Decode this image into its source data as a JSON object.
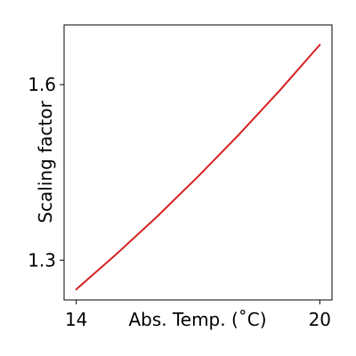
{
  "chart_data": {
    "type": "line",
    "xlabel": "Abs. Temp. (˚C)",
    "ylabel": "Scaling factor",
    "xlim": [
      13.7,
      20.3
    ],
    "ylim": [
      1.232,
      1.702
    ],
    "xticks": [
      14,
      20
    ],
    "xtick_labels": [
      "14",
      "20"
    ],
    "yticks": [
      1.3,
      1.6
    ],
    "ytick_labels": [
      "1.3",
      "1.6"
    ],
    "grid": false,
    "legend": "none",
    "series": [
      {
        "color": "#d62020",
        "x": [
          14,
          15,
          16,
          17,
          18,
          19,
          20
        ],
        "y": [
          1.25,
          1.311,
          1.375,
          1.443,
          1.514,
          1.589,
          1.668
        ]
      }
    ]
  }
}
